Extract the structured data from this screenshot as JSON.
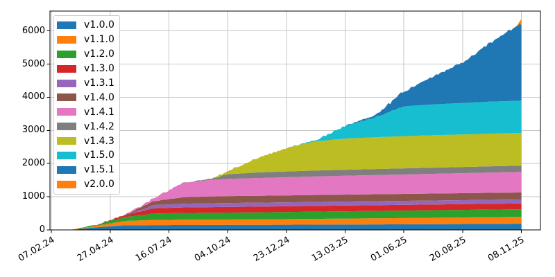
{
  "figure": {
    "background": "#ffffff",
    "frame_color": "#000000",
    "grid_color": "#c6c6c6",
    "legend_position": "upper left"
  },
  "chart_data": {
    "type": "area",
    "stacked": true,
    "title": "",
    "xlabel": "",
    "ylabel": "",
    "grid": true,
    "legend_position": "upper left",
    "x_axis": {
      "unit": "date",
      "tick_labels": [
        "07.02.24",
        "27.04.24",
        "16.07.24",
        "04.10.24",
        "23.12.24",
        "13.03.25",
        "01.06.25",
        "20.08.25",
        "08.11.25"
      ],
      "tick_days": [
        0,
        80,
        160,
        240,
        320,
        400,
        480,
        560,
        640
      ],
      "xlim_days": [
        -2,
        666
      ]
    },
    "y_axis": {
      "ticks": [
        0,
        1000,
        2000,
        3000,
        4000,
        5000,
        6000
      ],
      "tick_labels": [
        "0",
        "1000",
        "2000",
        "3000",
        "4000",
        "5000",
        "6000"
      ],
      "lim": [
        0,
        6600
      ]
    },
    "sample_days": [
      25,
      60,
      100,
      140,
      180,
      220,
      240,
      280,
      320,
      360,
      400,
      440,
      480,
      520,
      560,
      600,
      625,
      634,
      640
    ],
    "series": [
      {
        "name": "v1.0.0",
        "color": "#1f77b4",
        "values": [
          0,
          75,
          140,
          144,
          146,
          148,
          150,
          152,
          155,
          158,
          161,
          165,
          168,
          172,
          177,
          182,
          185,
          186,
          187
        ]
      },
      {
        "name": "v1.1.0",
        "color": "#ff7f0e",
        "values": [
          0,
          50,
          130,
          155,
          161,
          163,
          164,
          166,
          170,
          175,
          180,
          185,
          190,
          195,
          199,
          203,
          205,
          206,
          207
        ]
      },
      {
        "name": "v1.2.0",
        "color": "#2ca02c",
        "values": [
          0,
          25,
          120,
          195,
          203,
          206,
          208,
          211,
          214,
          217,
          220,
          222,
          224,
          226,
          228,
          229,
          230,
          230,
          230
        ]
      },
      {
        "name": "v1.3.0",
        "color": "#d62728",
        "values": [
          0,
          0,
          60,
          160,
          168,
          171,
          172,
          173,
          174,
          174,
          174,
          174,
          174,
          174,
          174,
          174,
          174,
          174,
          174
        ]
      },
      {
        "name": "v1.3.1",
        "color": "#9467bd",
        "values": [
          0,
          0,
          0,
          95,
          113,
          116,
          118,
          119,
          119,
          120,
          120,
          120,
          120,
          120,
          120,
          121,
          121,
          121,
          122
        ]
      },
      {
        "name": "v1.4.0",
        "color": "#8c564b",
        "values": [
          0,
          0,
          0,
          120,
          198,
          205,
          208,
          208,
          208,
          209,
          209,
          209,
          210,
          210,
          210,
          210,
          210,
          210,
          210
        ]
      },
      {
        "name": "v1.4.1",
        "color": "#e377c2",
        "values": [
          0,
          0,
          0,
          90,
          430,
          505,
          519,
          535,
          548,
          560,
          570,
          578,
          586,
          594,
          602,
          612,
          617,
          619,
          620
        ]
      },
      {
        "name": "v1.4.2",
        "color": "#7f7f7f",
        "values": [
          0,
          0,
          0,
          0,
          0,
          40,
          140,
          168,
          175,
          178,
          180,
          182,
          184,
          186,
          188,
          189,
          190,
          190,
          190
        ]
      },
      {
        "name": "v1.4.3",
        "color": "#bcbd22",
        "values": [
          0,
          0,
          0,
          0,
          0,
          0,
          100,
          430,
          700,
          880,
          940,
          958,
          972,
          978,
          981,
          983,
          984,
          984,
          985
        ]
      },
      {
        "name": "v1.5.0",
        "color": "#17becf",
        "values": [
          0,
          0,
          0,
          0,
          0,
          0,
          0,
          0,
          0,
          40,
          380,
          600,
          900,
          930,
          950,
          968,
          972,
          974,
          975
        ]
      },
      {
        "name": "v1.5.1",
        "color": "#1f77b4",
        "values": [
          0,
          0,
          0,
          0,
          0,
          0,
          0,
          0,
          0,
          0,
          0,
          60,
          450,
          840,
          1220,
          1800,
          2150,
          2250,
          2305
        ]
      },
      {
        "name": "v2.0.0",
        "color": "#ff7f0e",
        "values": [
          0,
          0,
          0,
          0,
          0,
          0,
          0,
          0,
          0,
          0,
          0,
          0,
          0,
          0,
          0,
          0,
          0,
          0,
          155
        ]
      }
    ]
  }
}
